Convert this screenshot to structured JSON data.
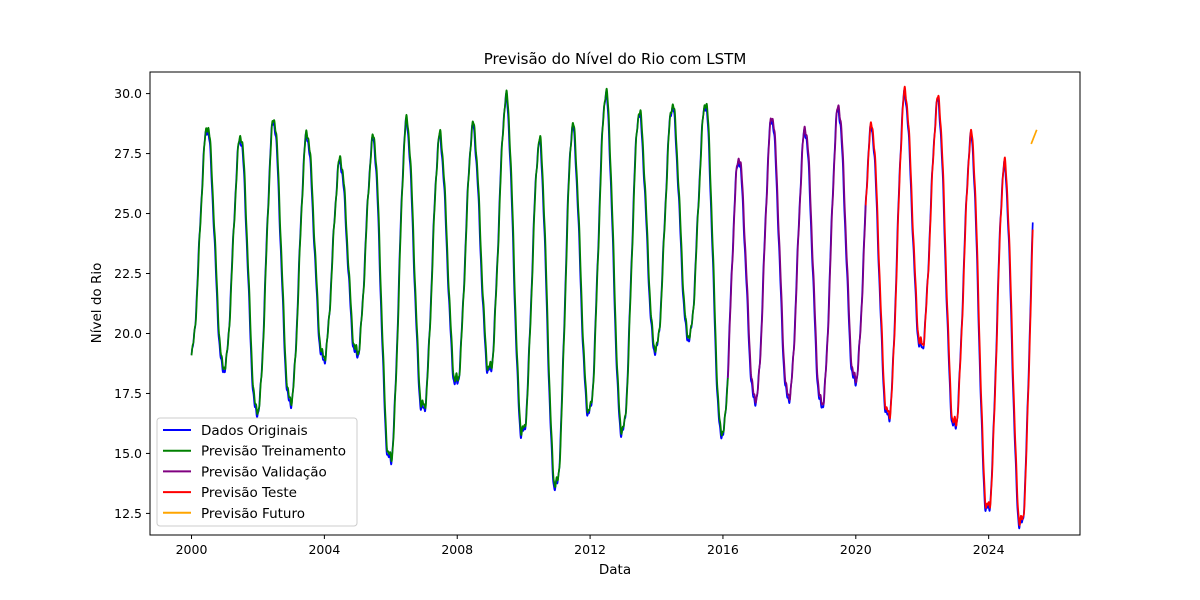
{
  "chart_data": {
    "type": "line",
    "title": "Previsão do Nível do Rio com LSTM",
    "xlabel": "Data",
    "ylabel": "Nível do Rio",
    "xlim": [
      1998.75,
      2026.75
    ],
    "ylim": [
      11.6,
      30.9
    ],
    "x_ticks": [
      2000,
      2004,
      2008,
      2012,
      2016,
      2020,
      2024
    ],
    "x_tick_labels": [
      "2000",
      "2004",
      "2008",
      "2012",
      "2016",
      "2020",
      "2024"
    ],
    "y_ticks": [
      12.5,
      15.0,
      17.5,
      20.0,
      22.5,
      25.0,
      27.5,
      30.0
    ],
    "y_tick_labels": [
      "12.5",
      "15.0",
      "17.5",
      "20.0",
      "22.5",
      "25.0",
      "27.5",
      "30.0"
    ],
    "grid": false,
    "legend_position": "lower-left",
    "annual_peaks": [
      {
        "year": 2000,
        "min": 19.2,
        "max": 28.6
      },
      {
        "year": 2001,
        "min": 18.6,
        "max": 28.2
      },
      {
        "year": 2002,
        "min": 16.8,
        "max": 28.9
      },
      {
        "year": 2003,
        "min": 17.2,
        "max": 28.3
      },
      {
        "year": 2004,
        "min": 19.0,
        "max": 27.2
      },
      {
        "year": 2005,
        "min": 19.2,
        "max": 28.1
      },
      {
        "year": 2006,
        "min": 14.8,
        "max": 28.8
      },
      {
        "year": 2007,
        "min": 16.9,
        "max": 28.2
      },
      {
        "year": 2008,
        "min": 18.0,
        "max": 28.6
      },
      {
        "year": 2009,
        "min": 18.5,
        "max": 29.8
      },
      {
        "year": 2010,
        "min": 15.9,
        "max": 28.0
      },
      {
        "year": 2011,
        "min": 13.7,
        "max": 28.6
      },
      {
        "year": 2012,
        "min": 16.8,
        "max": 30.0
      },
      {
        "year": 2013,
        "min": 16.0,
        "max": 29.2
      },
      {
        "year": 2014,
        "min": 19.4,
        "max": 29.5
      },
      {
        "year": 2015,
        "min": 19.9,
        "max": 29.6
      },
      {
        "year": 2016,
        "min": 15.9,
        "max": 27.3
      },
      {
        "year": 2017,
        "min": 17.3,
        "max": 29.0
      },
      {
        "year": 2018,
        "min": 17.4,
        "max": 28.5
      },
      {
        "year": 2019,
        "min": 17.1,
        "max": 29.4
      },
      {
        "year": 2020,
        "min": 18.1,
        "max": 28.6
      },
      {
        "year": 2021,
        "min": 16.6,
        "max": 30.0
      },
      {
        "year": 2022,
        "min": 19.5,
        "max": 29.7
      },
      {
        "year": 2023,
        "min": 16.2,
        "max": 28.2
      },
      {
        "year": 2024,
        "min": 12.7,
        "max": 27.0
      },
      {
        "year": 2025,
        "min": 12.1,
        "max": 28.1
      }
    ],
    "series": [
      {
        "name": "Dados Originais",
        "color": "#0000ff",
        "x_start": 2000.0,
        "x_end": 2025.33
      },
      {
        "name": "Previsão Treinamento",
        "color": "#008000",
        "x_start": 2000.0,
        "x_end": 2016.15
      },
      {
        "name": "Previsão Validação",
        "color": "#800080",
        "x_start": 2016.15,
        "x_end": 2020.3
      },
      {
        "name": "Previsão Teste",
        "color": "#ff0000",
        "x_start": 2020.3,
        "x_end": 2025.33
      },
      {
        "name": "Previsão Futuro",
        "color": "#ffa500",
        "x_start": 2025.28,
        "x_end": 2025.45,
        "values_start": 27.9,
        "values_end": 28.5
      }
    ]
  }
}
